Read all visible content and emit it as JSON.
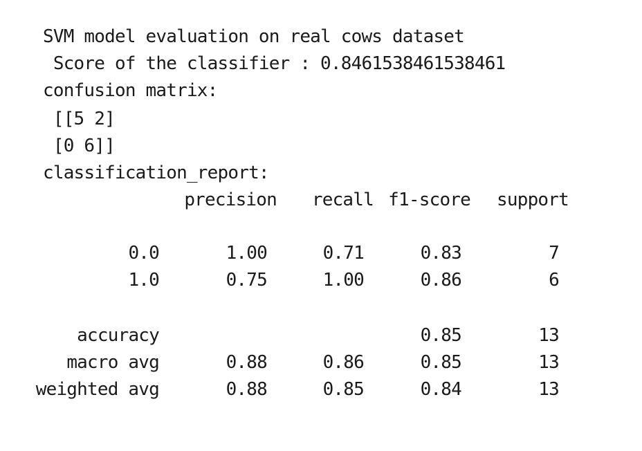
{
  "output": {
    "title_line": "SVM model evaluation on real cows dataset",
    "score_line": " Score of the classifier : 0.8461538461538461",
    "confusion_label": "confusion matrix:",
    "matrix_row_1": " [[5 2]",
    "matrix_row_2": " [0 6]]",
    "report_label": "classification_report:"
  },
  "report": {
    "headers": [
      "precision",
      "recall",
      "f1-score",
      "support"
    ],
    "rows": [
      {
        "label": "0.0",
        "precision": "1.00",
        "recall": "0.71",
        "f1": "0.83",
        "support": "7"
      },
      {
        "label": "1.0",
        "precision": "0.75",
        "recall": "1.00",
        "f1": "0.86",
        "support": "6"
      },
      {
        "label": "accuracy",
        "precision": "",
        "recall": "",
        "f1": "0.85",
        "support": "13"
      },
      {
        "label": "macro avg",
        "precision": "0.88",
        "recall": "0.86",
        "f1": "0.85",
        "support": "13"
      },
      {
        "label": "weighted avg",
        "precision": "0.88",
        "recall": "0.85",
        "f1": "0.84",
        "support": "13"
      }
    ]
  }
}
